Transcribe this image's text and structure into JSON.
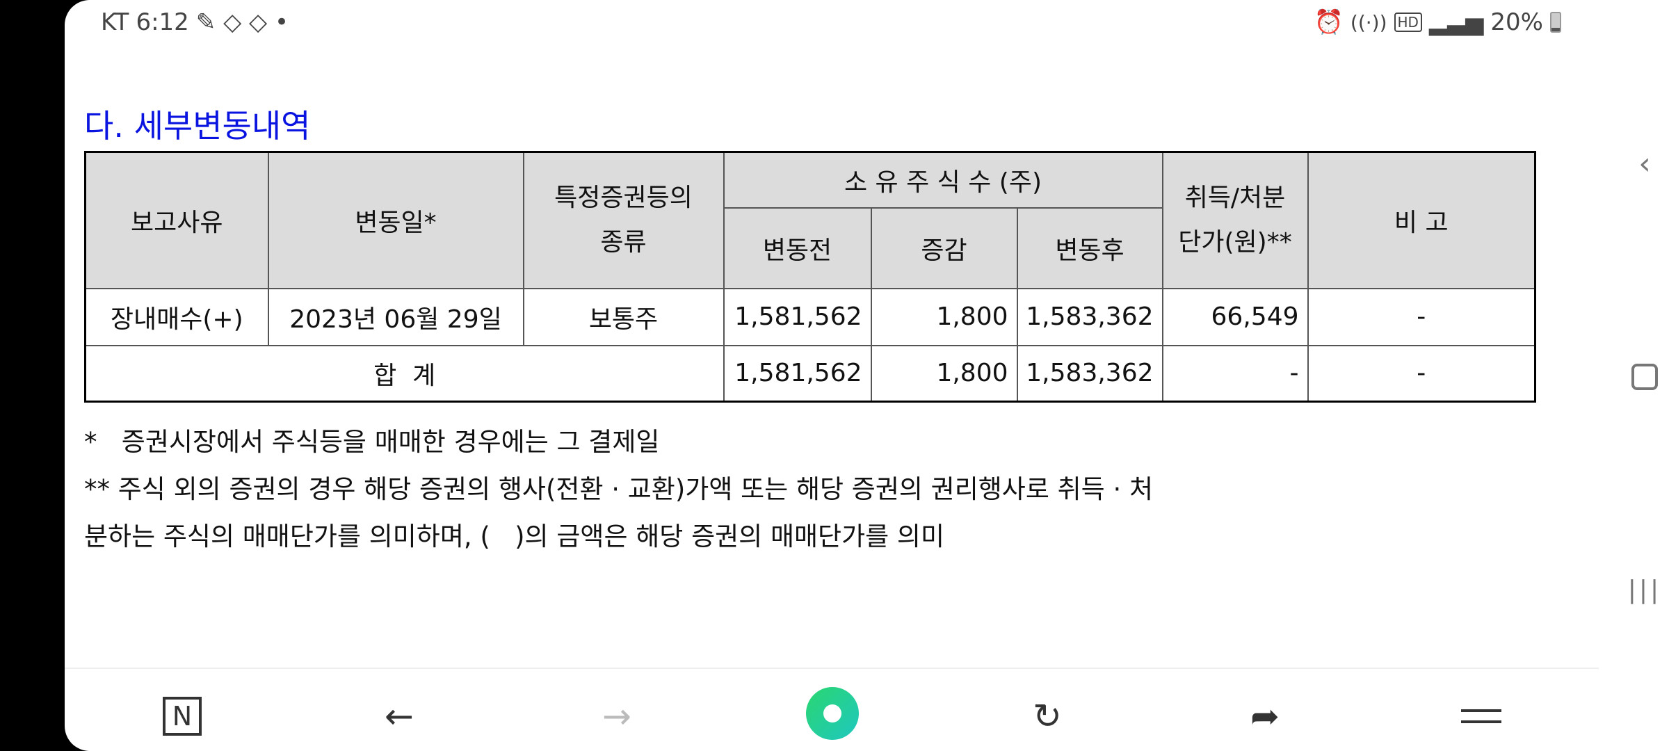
{
  "status_bar": {
    "carrier": "KT",
    "time": "6:12",
    "battery": "20%",
    "icons": [
      "alarm-icon",
      "wifi-icon",
      "hd-icon",
      "signal-icon",
      "battery-icon"
    ]
  },
  "heading": "다. 세부변동내역",
  "table": {
    "headers": {
      "reason": "보고사유",
      "date": "변동일*",
      "type_line1": "특정증권등의",
      "type_line2": "종류",
      "shares": "소 유 주 식 수 (주)",
      "before": "변동전",
      "change": "증감",
      "after": "변동후",
      "price_line1": "취득/처분",
      "price_line2": "단가(원)**",
      "remark": "비 고"
    },
    "rows": [
      {
        "reason": "장내매수(+)",
        "date": "2023년 06월 29일",
        "type": "보통주",
        "before": "1,581,562",
        "change": "1,800",
        "after": "1,583,362",
        "price": "66,549",
        "remark": "-"
      }
    ],
    "total": {
      "label": "합  계",
      "before": "1,581,562",
      "change": "1,800",
      "after": "1,583,362",
      "price": "-",
      "remark": "-"
    }
  },
  "notes": [
    "*   증권시장에서 주식등을 매매한 경우에는 그 결제일",
    "** 주식 외의 증권의 경우 해당 증권의 행사(전환 · 교환)가액 또는 해당 증권의 권리행사로 취득 · 처",
    "분하는 주식의 매매단가를 의미하며, (   )의 금액은 해당 증권의 매매단가를 의미"
  ],
  "nav": {
    "n_label": "N"
  },
  "colors": {
    "heading": "#0a14e0",
    "header_bg": "#dcdcdc",
    "accent": "#1ed38a"
  }
}
